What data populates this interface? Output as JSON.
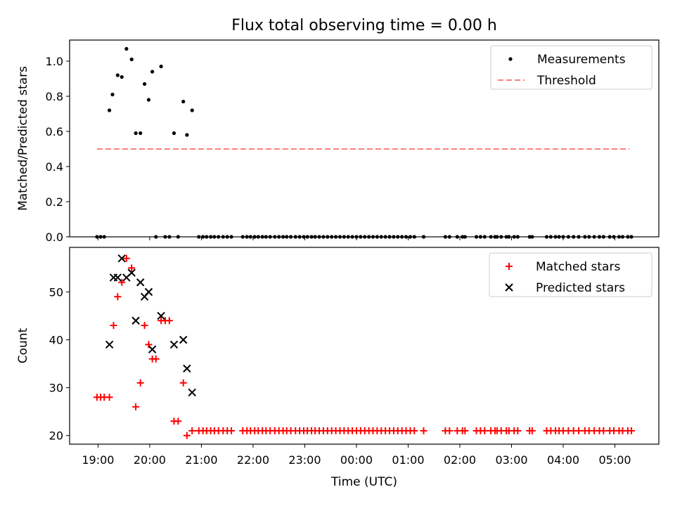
{
  "figure": {
    "title": "Flux total observing time = 0.00 h",
    "xlabel": "Time (UTC)",
    "time_range_hours": [
      18.45,
      29.85
    ],
    "xticks": [
      {
        "h": 19,
        "label": "19:00"
      },
      {
        "h": 20,
        "label": "20:00"
      },
      {
        "h": 21,
        "label": "21:00"
      },
      {
        "h": 22,
        "label": "22:00"
      },
      {
        "h": 23,
        "label": "23:00"
      },
      {
        "h": 24,
        "label": "00:00"
      },
      {
        "h": 25,
        "label": "01:00"
      },
      {
        "h": 26,
        "label": "02:00"
      },
      {
        "h": 27,
        "label": "03:00"
      },
      {
        "h": 28,
        "label": "04:00"
      },
      {
        "h": 29,
        "label": "05:00"
      }
    ]
  },
  "chart_data": [
    {
      "type": "scatter",
      "panel": "top",
      "ylabel": "Matched/Predicted stars",
      "ylim": [
        0,
        1.12
      ],
      "yticks": [
        "0.0",
        "0.2",
        "0.4",
        "0.6",
        "0.8",
        "1.0"
      ],
      "legend": {
        "position": "top-right",
        "entries": [
          "Measurements",
          "Threshold"
        ]
      },
      "threshold": {
        "name": "Threshold",
        "value": 0.5,
        "x_start": 18.98,
        "x_end": 29.28,
        "color": "#ff7f7f"
      },
      "series": [
        {
          "name": "Measurements",
          "color": "#000000",
          "points": [
            [
              18.98,
              0
            ],
            [
              19.05,
              0
            ],
            [
              19.12,
              0
            ],
            [
              19.22,
              0.72
            ],
            [
              19.28,
              0.81
            ],
            [
              19.38,
              0.92
            ],
            [
              19.46,
              0.91
            ],
            [
              19.55,
              1.07
            ],
            [
              19.65,
              1.01
            ],
            [
              19.73,
              0.59
            ],
            [
              19.82,
              0.59
            ],
            [
              19.9,
              0.87
            ],
            [
              19.98,
              0.78
            ],
            [
              20.05,
              0.94
            ],
            [
              20.12,
              0
            ],
            [
              20.22,
              0.97
            ],
            [
              20.3,
              0
            ],
            [
              20.38,
              0
            ],
            [
              20.47,
              0.59
            ],
            [
              20.55,
              0
            ],
            [
              20.65,
              0.77
            ],
            [
              20.72,
              0.58
            ],
            [
              20.82,
              0.72
            ],
            [
              20.95,
              0
            ],
            [
              21.03,
              0
            ],
            [
              21.1,
              0
            ],
            [
              21.18,
              0
            ],
            [
              21.25,
              0
            ],
            [
              21.33,
              0
            ],
            [
              21.42,
              0
            ],
            [
              21.5,
              0
            ],
            [
              21.58,
              0
            ],
            [
              21.8,
              0
            ],
            [
              21.88,
              0
            ],
            [
              21.95,
              0
            ],
            [
              22.03,
              0
            ],
            [
              22.1,
              0
            ],
            [
              22.18,
              0
            ],
            [
              22.25,
              0
            ],
            [
              22.33,
              0
            ],
            [
              22.42,
              0
            ],
            [
              22.5,
              0
            ],
            [
              22.58,
              0
            ],
            [
              22.65,
              0
            ],
            [
              22.73,
              0
            ],
            [
              22.82,
              0
            ],
            [
              22.9,
              0
            ],
            [
              22.98,
              0
            ],
            [
              23.05,
              0
            ],
            [
              23.13,
              0
            ],
            [
              23.2,
              0
            ],
            [
              23.28,
              0
            ],
            [
              23.36,
              0
            ],
            [
              23.44,
              0
            ],
            [
              23.52,
              0
            ],
            [
              23.6,
              0
            ],
            [
              23.68,
              0
            ],
            [
              23.76,
              0
            ],
            [
              23.84,
              0
            ],
            [
              23.92,
              0
            ],
            [
              24.0,
              0
            ],
            [
              24.08,
              0
            ],
            [
              24.16,
              0
            ],
            [
              24.24,
              0
            ],
            [
              24.32,
              0
            ],
            [
              24.4,
              0
            ],
            [
              24.48,
              0
            ],
            [
              24.56,
              0
            ],
            [
              24.64,
              0
            ],
            [
              24.72,
              0
            ],
            [
              24.8,
              0
            ],
            [
              24.88,
              0
            ],
            [
              24.96,
              0
            ],
            [
              25.04,
              0
            ],
            [
              25.12,
              0
            ],
            [
              25.3,
              0
            ],
            [
              25.72,
              0
            ],
            [
              25.8,
              0
            ],
            [
              25.95,
              0
            ],
            [
              26.05,
              0
            ],
            [
              26.1,
              0
            ],
            [
              26.32,
              0
            ],
            [
              26.4,
              0
            ],
            [
              26.48,
              0
            ],
            [
              26.6,
              0
            ],
            [
              26.68,
              0
            ],
            [
              26.72,
              0
            ],
            [
              26.8,
              0
            ],
            [
              26.9,
              0
            ],
            [
              26.95,
              0
            ],
            [
              27.05,
              0
            ],
            [
              27.12,
              0
            ],
            [
              27.35,
              0
            ],
            [
              27.4,
              0
            ],
            [
              27.68,
              0
            ],
            [
              27.76,
              0
            ],
            [
              27.85,
              0
            ],
            [
              27.92,
              0
            ],
            [
              28.0,
              0
            ],
            [
              28.1,
              0
            ],
            [
              28.2,
              0
            ],
            [
              28.3,
              0
            ],
            [
              28.42,
              0
            ],
            [
              28.5,
              0
            ],
            [
              28.6,
              0
            ],
            [
              28.7,
              0
            ],
            [
              28.78,
              0
            ],
            [
              28.9,
              0
            ],
            [
              28.98,
              0
            ],
            [
              29.08,
              0
            ],
            [
              29.15,
              0
            ],
            [
              29.25,
              0
            ],
            [
              29.32,
              0
            ]
          ]
        }
      ]
    },
    {
      "type": "scatter",
      "panel": "bottom",
      "ylabel": "Count",
      "ylim": [
        18.2,
        59.3
      ],
      "yticks": [
        "20",
        "30",
        "40",
        "50"
      ],
      "legend": {
        "position": "top-right",
        "entries": [
          "Matched stars",
          "Predicted stars"
        ]
      },
      "series": [
        {
          "name": "Matched stars",
          "marker": "plus",
          "color": "#ff0000",
          "points": [
            [
              18.98,
              28
            ],
            [
              19.05,
              28
            ],
            [
              19.12,
              28
            ],
            [
              19.22,
              28
            ],
            [
              19.3,
              43
            ],
            [
              19.38,
              49
            ],
            [
              19.46,
              52
            ],
            [
              19.55,
              57
            ],
            [
              19.65,
              55
            ],
            [
              19.73,
              26
            ],
            [
              19.82,
              31
            ],
            [
              19.9,
              43
            ],
            [
              19.98,
              39
            ],
            [
              20.05,
              36
            ],
            [
              20.12,
              36
            ],
            [
              20.22,
              44
            ],
            [
              20.3,
              44
            ],
            [
              20.38,
              44
            ],
            [
              20.47,
              23
            ],
            [
              20.55,
              23
            ],
            [
              20.65,
              31
            ],
            [
              20.72,
              20
            ],
            [
              20.82,
              21
            ],
            [
              20.95,
              21
            ],
            [
              21.03,
              21
            ],
            [
              21.1,
              21
            ],
            [
              21.18,
              21
            ],
            [
              21.25,
              21
            ],
            [
              21.33,
              21
            ],
            [
              21.42,
              21
            ],
            [
              21.5,
              21
            ],
            [
              21.58,
              21
            ],
            [
              21.8,
              21
            ],
            [
              21.88,
              21
            ],
            [
              21.95,
              21
            ],
            [
              22.03,
              21
            ],
            [
              22.1,
              21
            ],
            [
              22.18,
              21
            ],
            [
              22.25,
              21
            ],
            [
              22.33,
              21
            ],
            [
              22.42,
              21
            ],
            [
              22.5,
              21
            ],
            [
              22.58,
              21
            ],
            [
              22.65,
              21
            ],
            [
              22.73,
              21
            ],
            [
              22.82,
              21
            ],
            [
              22.9,
              21
            ],
            [
              22.98,
              21
            ],
            [
              23.05,
              21
            ],
            [
              23.13,
              21
            ],
            [
              23.2,
              21
            ],
            [
              23.28,
              21
            ],
            [
              23.36,
              21
            ],
            [
              23.44,
              21
            ],
            [
              23.52,
              21
            ],
            [
              23.6,
              21
            ],
            [
              23.68,
              21
            ],
            [
              23.76,
              21
            ],
            [
              23.84,
              21
            ],
            [
              23.92,
              21
            ],
            [
              24.0,
              21
            ],
            [
              24.08,
              21
            ],
            [
              24.16,
              21
            ],
            [
              24.24,
              21
            ],
            [
              24.32,
              21
            ],
            [
              24.4,
              21
            ],
            [
              24.48,
              21
            ],
            [
              24.56,
              21
            ],
            [
              24.64,
              21
            ],
            [
              24.72,
              21
            ],
            [
              24.8,
              21
            ],
            [
              24.88,
              21
            ],
            [
              24.96,
              21
            ],
            [
              25.04,
              21
            ],
            [
              25.12,
              21
            ],
            [
              25.3,
              21
            ],
            [
              25.72,
              21
            ],
            [
              25.8,
              21
            ],
            [
              25.95,
              21
            ],
            [
              26.05,
              21
            ],
            [
              26.1,
              21
            ],
            [
              26.32,
              21
            ],
            [
              26.4,
              21
            ],
            [
              26.48,
              21
            ],
            [
              26.6,
              21
            ],
            [
              26.68,
              21
            ],
            [
              26.72,
              21
            ],
            [
              26.8,
              21
            ],
            [
              26.9,
              21
            ],
            [
              26.95,
              21
            ],
            [
              27.05,
              21
            ],
            [
              27.12,
              21
            ],
            [
              27.35,
              21
            ],
            [
              27.4,
              21
            ],
            [
              27.68,
              21
            ],
            [
              27.76,
              21
            ],
            [
              27.85,
              21
            ],
            [
              27.92,
              21
            ],
            [
              28.0,
              21
            ],
            [
              28.1,
              21
            ],
            [
              28.2,
              21
            ],
            [
              28.3,
              21
            ],
            [
              28.42,
              21
            ],
            [
              28.5,
              21
            ],
            [
              28.6,
              21
            ],
            [
              28.7,
              21
            ],
            [
              28.78,
              21
            ],
            [
              28.9,
              21
            ],
            [
              28.98,
              21
            ],
            [
              29.08,
              21
            ],
            [
              29.15,
              21
            ],
            [
              29.25,
              21
            ],
            [
              29.32,
              21
            ]
          ]
        },
        {
          "name": "Predicted stars",
          "marker": "x",
          "color": "#000000",
          "points": [
            [
              19.22,
              39
            ],
            [
              19.3,
              53
            ],
            [
              19.38,
              53
            ],
            [
              19.46,
              57
            ],
            [
              19.55,
              53
            ],
            [
              19.65,
              54
            ],
            [
              19.73,
              44
            ],
            [
              19.82,
              52
            ],
            [
              19.9,
              49
            ],
            [
              19.98,
              50
            ],
            [
              20.05,
              38
            ],
            [
              20.22,
              45
            ],
            [
              20.47,
              39
            ],
            [
              20.65,
              40
            ],
            [
              20.72,
              34
            ],
            [
              20.82,
              29
            ]
          ]
        }
      ]
    }
  ]
}
